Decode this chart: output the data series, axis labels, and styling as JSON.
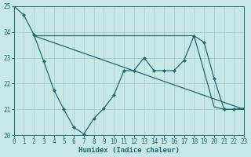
{
  "xlabel": "Humidex (Indice chaleur)",
  "bg_color": "#c8e8e8",
  "grid_color": "#aacece",
  "line_color": "#1e6b6b",
  "xlim": [
    0,
    23
  ],
  "ylim": [
    20,
    25
  ],
  "yticks": [
    20,
    21,
    22,
    23,
    24,
    25
  ],
  "xticks": [
    0,
    1,
    2,
    3,
    4,
    5,
    6,
    7,
    8,
    9,
    10,
    11,
    12,
    13,
    14,
    15,
    16,
    17,
    18,
    19,
    20,
    21,
    22,
    23
  ],
  "line1_x": [
    0,
    1,
    2,
    3,
    4,
    5,
    6,
    7,
    8,
    9,
    10,
    11,
    12,
    13,
    14,
    15,
    16,
    17,
    18,
    19,
    20,
    21,
    22,
    23
  ],
  "line1_y": [
    25.0,
    24.65,
    23.9,
    22.85,
    21.75,
    21.0,
    20.3,
    20.05,
    20.65,
    21.05,
    21.55,
    22.5,
    22.5,
    23.0,
    22.5,
    22.5,
    22.5,
    22.9,
    23.85,
    23.6,
    22.2,
    21.0,
    21.0,
    21.05
  ],
  "line2_x": [
    2,
    3,
    4,
    5,
    6,
    7,
    8,
    9,
    10,
    11,
    12,
    13,
    14,
    15,
    16,
    17,
    18,
    20,
    21,
    22,
    23
  ],
  "line2_y": [
    23.85,
    23.85,
    23.85,
    23.85,
    23.85,
    23.85,
    23.85,
    23.85,
    23.85,
    23.85,
    23.85,
    23.85,
    23.85,
    23.85,
    23.85,
    23.85,
    23.85,
    21.1,
    21.0,
    21.0,
    21.0
  ],
  "line3_x": [
    2,
    23
  ],
  "line3_y": [
    23.85,
    21.0
  ]
}
